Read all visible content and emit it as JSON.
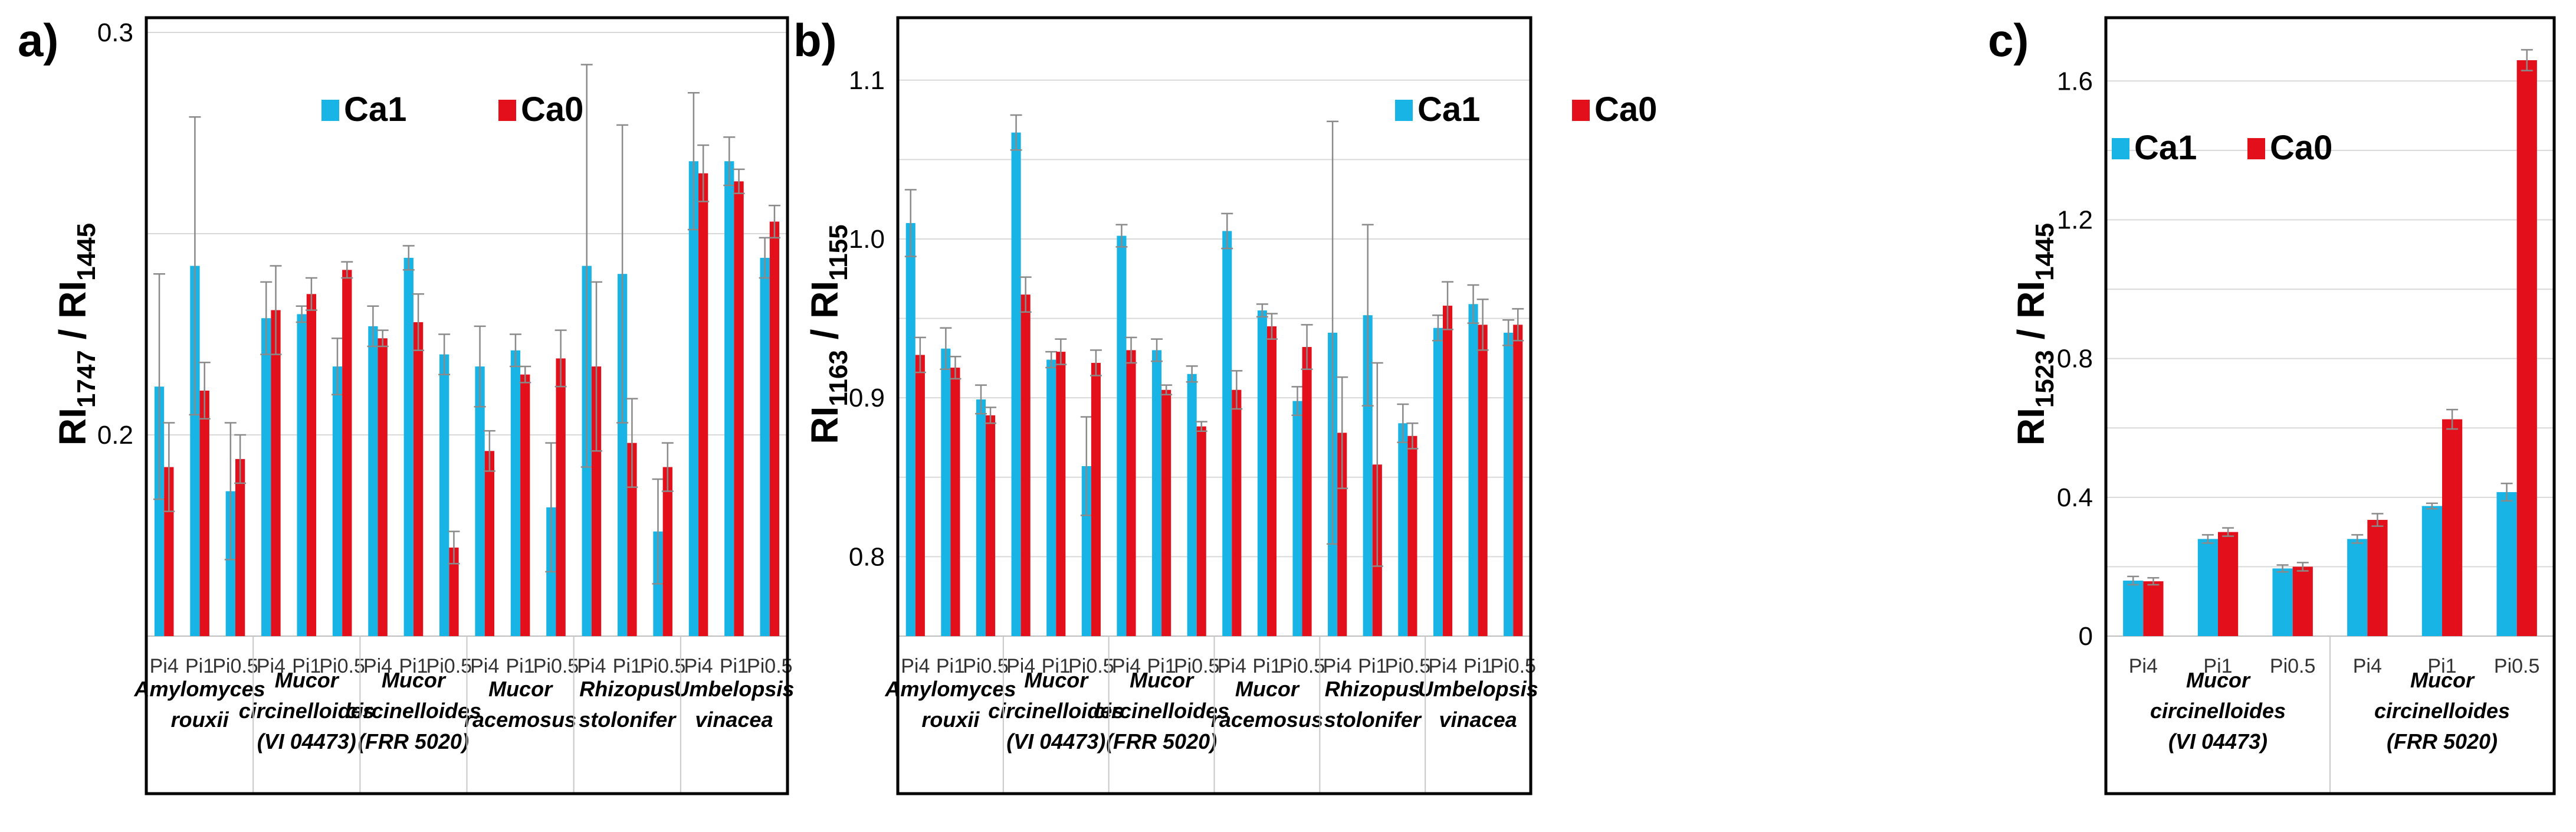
{
  "colors": {
    "Ca1": "#19b4e6",
    "Ca0": "#e3101b",
    "error": "#8a8a8a",
    "grid": "#d9d9d9",
    "border": "#000000"
  },
  "chart_data": [
    {
      "panel": "a)",
      "type": "bar",
      "ylabel": {
        "main": "RI",
        "sub1": "1747",
        "sep": " / RI",
        "sub2": "1445"
      },
      "ylim": [
        0.15,
        0.3
      ],
      "yticks": [
        0.2,
        0.3
      ],
      "ytick_labels": [
        "0.2",
        "0.3"
      ],
      "legend": [
        "Ca1",
        "Ca0"
      ],
      "categories": [
        "Pi4",
        "Pi1",
        "Pi0.5"
      ],
      "groups": [
        {
          "name": [
            "Amylomyces",
            "rouxii"
          ],
          "Ca1": [
            0.212,
            0.242,
            0.186
          ],
          "Ca1_err": [
            0.028,
            0.037,
            0.017
          ],
          "Ca0": [
            0.192,
            0.211,
            0.194
          ],
          "Ca0_err": [
            0.011,
            0.007,
            0.006
          ]
        },
        {
          "name": [
            "Mucor",
            "circinelloides",
            "(VI 04473)"
          ],
          "Ca1": [
            0.229,
            0.23,
            0.217
          ],
          "Ca1_err": [
            0.009,
            0.002,
            0.007
          ],
          "Ca0": [
            0.231,
            0.235,
            0.241
          ],
          "Ca0_err": [
            0.011,
            0.004,
            0.002
          ]
        },
        {
          "name": [
            "Mucor",
            "circinelloides",
            "(FRR 5020)"
          ],
          "Ca1": [
            0.227,
            0.244,
            0.22
          ],
          "Ca1_err": [
            0.005,
            0.003,
            0.005
          ],
          "Ca0": [
            0.224,
            0.228,
            0.172
          ],
          "Ca0_err": [
            0.002,
            0.007,
            0.004
          ]
        },
        {
          "name": [
            "Mucor",
            "racemosus"
          ],
          "Ca1": [
            0.217,
            0.221,
            0.182
          ],
          "Ca1_err": [
            0.01,
            0.004,
            0.016
          ],
          "Ca0": [
            0.196,
            0.215,
            0.219
          ],
          "Ca0_err": [
            0.005,
            0.002,
            0.007
          ]
        },
        {
          "name": [
            "Rhizopus",
            "stolonifer"
          ],
          "Ca1": [
            0.242,
            0.24,
            0.176
          ],
          "Ca1_err": [
            0.05,
            0.037,
            0.013
          ],
          "Ca0": [
            0.217,
            0.198,
            0.192
          ],
          "Ca0_err": [
            0.021,
            0.011,
            0.006
          ]
        },
        {
          "name": [
            "Umbelopsis",
            "vinacea"
          ],
          "Ca1": [
            0.268,
            0.268,
            0.244
          ],
          "Ca1_err": [
            0.017,
            0.006,
            0.005
          ],
          "Ca0": [
            0.265,
            0.263,
            0.253
          ],
          "Ca0_err": [
            0.007,
            0.003,
            0.004
          ]
        }
      ]
    },
    {
      "panel": "b)",
      "type": "bar",
      "ylabel": {
        "main": "RI",
        "sub1": "1163",
        "sep": " / RI",
        "sub2": "1155"
      },
      "ylim": [
        0.75,
        1.13
      ],
      "yticks": [
        0.8,
        0.9,
        1.0,
        1.1
      ],
      "ytick_labels": [
        "0.8",
        "0.9",
        "1.0",
        "1.1"
      ],
      "legend": [
        "Ca1",
        "Ca0"
      ],
      "categories": [
        "Pi4",
        "Pi1",
        "Pi0.5"
      ],
      "groups": [
        {
          "name": [
            "Amylomyces",
            "rouxii"
          ],
          "Ca1": [
            1.01,
            0.931,
            0.899
          ],
          "Ca1_err": [
            0.021,
            0.013,
            0.009
          ],
          "Ca0": [
            0.927,
            0.919,
            0.889
          ],
          "Ca0_err": [
            0.011,
            0.007,
            0.005
          ]
        },
        {
          "name": [
            "Mucor",
            "circinelloides",
            "(VI 04473)"
          ],
          "Ca1": [
            1.067,
            0.924,
            0.857
          ],
          "Ca1_err": [
            0.011,
            0.005,
            0.031
          ],
          "Ca0": [
            0.965,
            0.929,
            0.922
          ],
          "Ca0_err": [
            0.011,
            0.008,
            0.008
          ]
        },
        {
          "name": [
            "Mucor",
            "circinelloides",
            "(FRR 5020)"
          ],
          "Ca1": [
            1.002,
            0.93,
            0.915
          ],
          "Ca1_err": [
            0.007,
            0.007,
            0.005
          ],
          "Ca0": [
            0.93,
            0.905,
            0.882
          ],
          "Ca0_err": [
            0.008,
            0.003,
            0.003
          ]
        },
        {
          "name": [
            "Mucor",
            "racemosus"
          ],
          "Ca1": [
            1.005,
            0.955,
            0.898
          ],
          "Ca1_err": [
            0.011,
            0.004,
            0.009
          ],
          "Ca0": [
            0.905,
            0.945,
            0.932
          ],
          "Ca0_err": [
            0.012,
            0.008,
            0.014
          ]
        },
        {
          "name": [
            "Rhizopus",
            "stolonifer"
          ],
          "Ca1": [
            0.941,
            0.952,
            0.884
          ],
          "Ca1_err": [
            0.133,
            0.057,
            0.012
          ],
          "Ca0": [
            0.878,
            0.858,
            0.876
          ],
          "Ca0_err": [
            0.035,
            0.064,
            0.008
          ]
        },
        {
          "name": [
            "Umbelopsis",
            "vinacea"
          ],
          "Ca1": [
            0.944,
            0.959,
            0.941
          ],
          "Ca1_err": [
            0.008,
            0.012,
            0.008
          ],
          "Ca0": [
            0.958,
            0.946,
            0.946
          ],
          "Ca0_err": [
            0.015,
            0.016,
            0.01
          ]
        }
      ]
    },
    {
      "panel": "c)",
      "type": "bar",
      "ylabel": {
        "main": "RI",
        "sub1": "1523",
        "sep": " / RI",
        "sub2": "1445"
      },
      "ylim": [
        0,
        1.74
      ],
      "yticks": [
        0,
        0.4,
        0.8,
        1.2,
        1.6
      ],
      "ytick_labels": [
        "0",
        "0.4",
        "0.8",
        "1.2",
        "1.6"
      ],
      "legend": [
        "Ca1",
        "Ca0"
      ],
      "categories": [
        "Pi4",
        "Pi1",
        "Pi0.5"
      ],
      "groups": [
        {
          "name": [
            "Mucor",
            "circinelloides",
            "(VI 04473)"
          ],
          "Ca1": [
            0.16,
            0.28,
            0.195
          ],
          "Ca1_err": [
            0.012,
            0.012,
            0.01
          ],
          "Ca0": [
            0.158,
            0.3,
            0.2
          ],
          "Ca0_err": [
            0.01,
            0.012,
            0.012
          ]
        },
        {
          "name": [
            "Mucor",
            "circinelloides",
            "(FRR 5020)"
          ],
          "Ca1": [
            0.28,
            0.375,
            0.415
          ],
          "Ca1_err": [
            0.012,
            0.008,
            0.025
          ],
          "Ca0": [
            0.335,
            0.625,
            1.66
          ],
          "Ca0_err": [
            0.018,
            0.028,
            0.03
          ]
        }
      ]
    }
  ]
}
